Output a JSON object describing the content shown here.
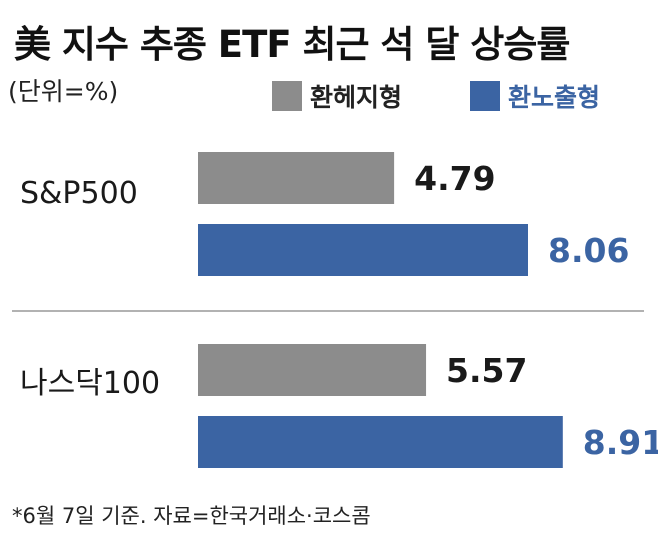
{
  "chart_data": {
    "type": "bar",
    "orientation": "horizontal",
    "title": "美 지수 추종 ETF 최근 석 달 상승률",
    "subtitle": "(단위=%)",
    "categories": [
      "S&P500",
      "나스닥100"
    ],
    "series": [
      {
        "name": "환헤지형",
        "values": [
          4.79,
          5.57
        ],
        "color": "#8c8c8c",
        "label_color": "#1a1a1a"
      },
      {
        "name": "환노출형",
        "values": [
          8.06,
          8.91
        ],
        "color": "#3b64a3",
        "label_color": "#3b64a3"
      }
    ],
    "legend_position": "top-right",
    "grid": false,
    "footnote": "*6월 7일 기준. 자료=한국거래소·코스콤"
  }
}
